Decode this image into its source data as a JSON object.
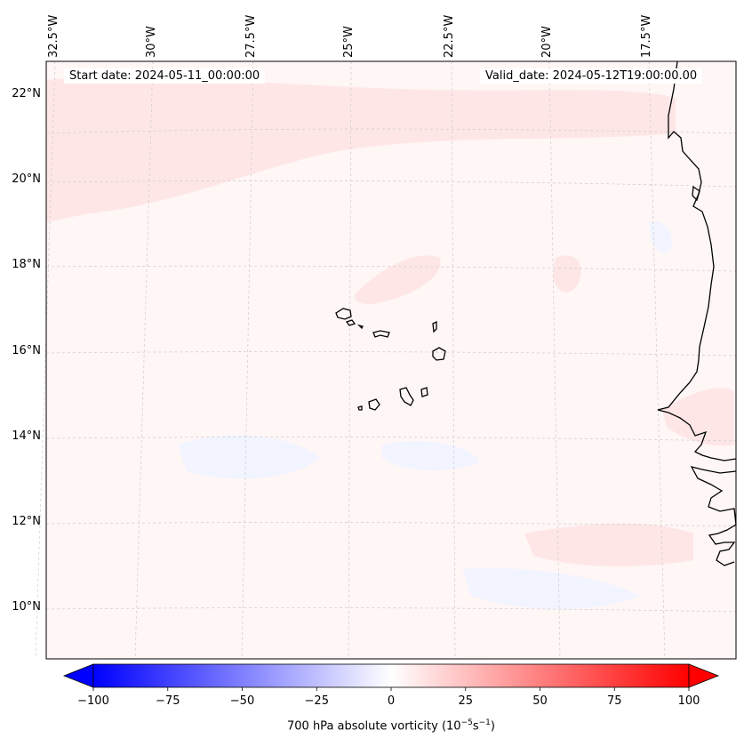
{
  "header": {
    "start_date": "Start date: 2024-05-11_00:00:00",
    "valid_date": "Valid_date: 2024-05-12T19:00:00.00"
  },
  "longitude_labels": [
    "32.5°W",
    "30°W",
    "27.5°W",
    "25°W",
    "22.5°W",
    "20°W",
    "17.5°W"
  ],
  "latitude_labels": [
    "22°N",
    "20°N",
    "18°N",
    "16°N",
    "14°N",
    "12°N",
    "10°N"
  ],
  "colorbar": {
    "ticks": [
      "−100",
      "−75",
      "−50",
      "−25",
      "0",
      "25",
      "50",
      "75",
      "100"
    ],
    "label_prefix": "700 hPa absolute vorticity (10",
    "label_exp1": "−5",
    "label_mid": "s",
    "label_exp2": "−1",
    "label_suffix": ")",
    "min_color": "#0000ff",
    "mid_color": "#ffffff",
    "max_color": "#ff0000"
  },
  "map": {
    "field_background": "#fff6f6",
    "positive_patch_color": "#ffe6e6",
    "negative_patch_color": "#f2f4ff",
    "coastline_color": "#000000",
    "gridline_color": "#cccccc"
  }
}
